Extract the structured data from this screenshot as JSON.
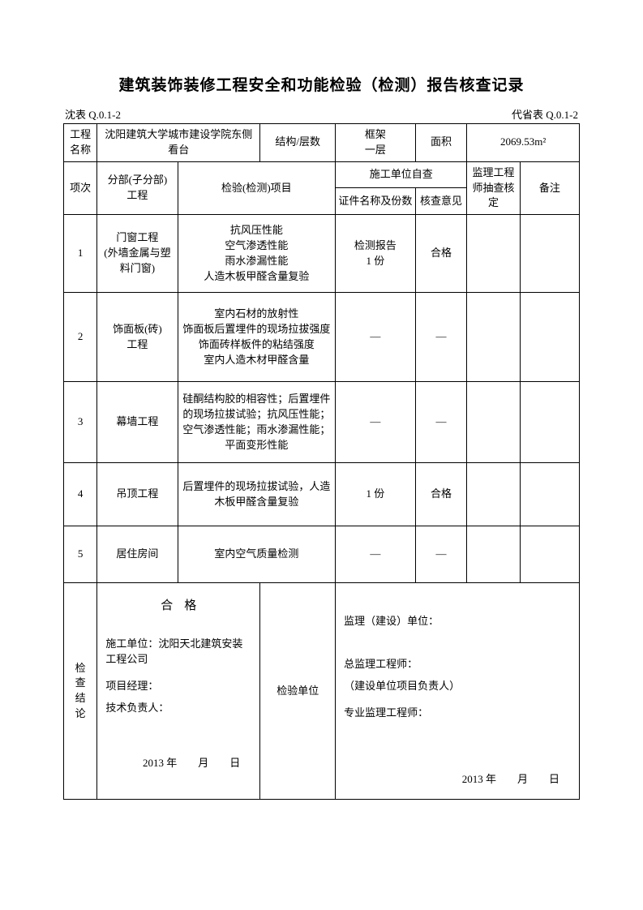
{
  "title": "建筑装饰装修工程安全和功能检验（检测）报告核查记录",
  "top_left_label": "沈表 Q.0.1-2",
  "top_right_label": "代省表 Q.0.1-2",
  "header_row": {
    "col1_label": "工程名称",
    "col1_value": "沈阳建筑大学城市建设学院东侧看台",
    "col2_label": "结构/层数",
    "col2_value": "框架\n一层",
    "col3_label": "面积",
    "col3_value": "2069.53m²"
  },
  "columns": {
    "c1": "项次",
    "c2": "分部(子分部)\n工程",
    "c3": "检验(检测)项目",
    "c4_group": "施工单位自查",
    "c4a": "证件名称及份数",
    "c4b": "核查意见",
    "c5": "监理工程师抽查核定",
    "c6": "备注"
  },
  "rows": [
    {
      "n": "1",
      "sub": "门窗工程\n(外墙金属与塑料门窗)",
      "item": "抗风压性能\n空气渗透性能\n雨水渗漏性能\n人造木板甲醛含量复验",
      "cert": "检测报告\n1 份",
      "op": "合格",
      "s": "",
      "r": ""
    },
    {
      "n": "2",
      "sub": "饰面板(砖)\n工程",
      "item": "室内石材的放射性\n饰面板后置埋件的现场拉拔强度\n饰面砖样板件的粘结强度\n室内人造木材甲醛含量",
      "cert": "—",
      "op": "—",
      "s": "",
      "r": ""
    },
    {
      "n": "3",
      "sub": "幕墙工程",
      "item": "硅酮结构胶的相容性；后置埋件的现场拉拔试验；抗风压性能；空气渗透性能；雨水渗漏性能；平面变形性能",
      "cert": "—",
      "op": "—",
      "s": "",
      "r": ""
    },
    {
      "n": "4",
      "sub": "吊顶工程",
      "item": "后置埋件的现场拉拔试验，人造木板甲醛含量复验",
      "cert": "1 份",
      "op": "合格",
      "s": "",
      "r": ""
    },
    {
      "n": "5",
      "sub": "居住房间",
      "item": "室内空气质量检测",
      "cert": "—",
      "op": "—",
      "s": "",
      "r": ""
    }
  ],
  "footer": {
    "left_label": "检查结论",
    "qualified": "合格",
    "construction_unit_label": "施工单位：",
    "construction_unit_value": "沈阳天北建筑安装工程公司",
    "pm_label": "项目经理：",
    "tech_label": "技术负责人：",
    "mid_label": "检验单位",
    "sup_unit_label": "监理（建设）单位：",
    "chief_label": "总监理工程师：",
    "owner_pm_label": "（建设单位项目负责人）",
    "pro_sup_label": "专业监理工程师：",
    "date_text": "2013 年　　月　　日"
  }
}
